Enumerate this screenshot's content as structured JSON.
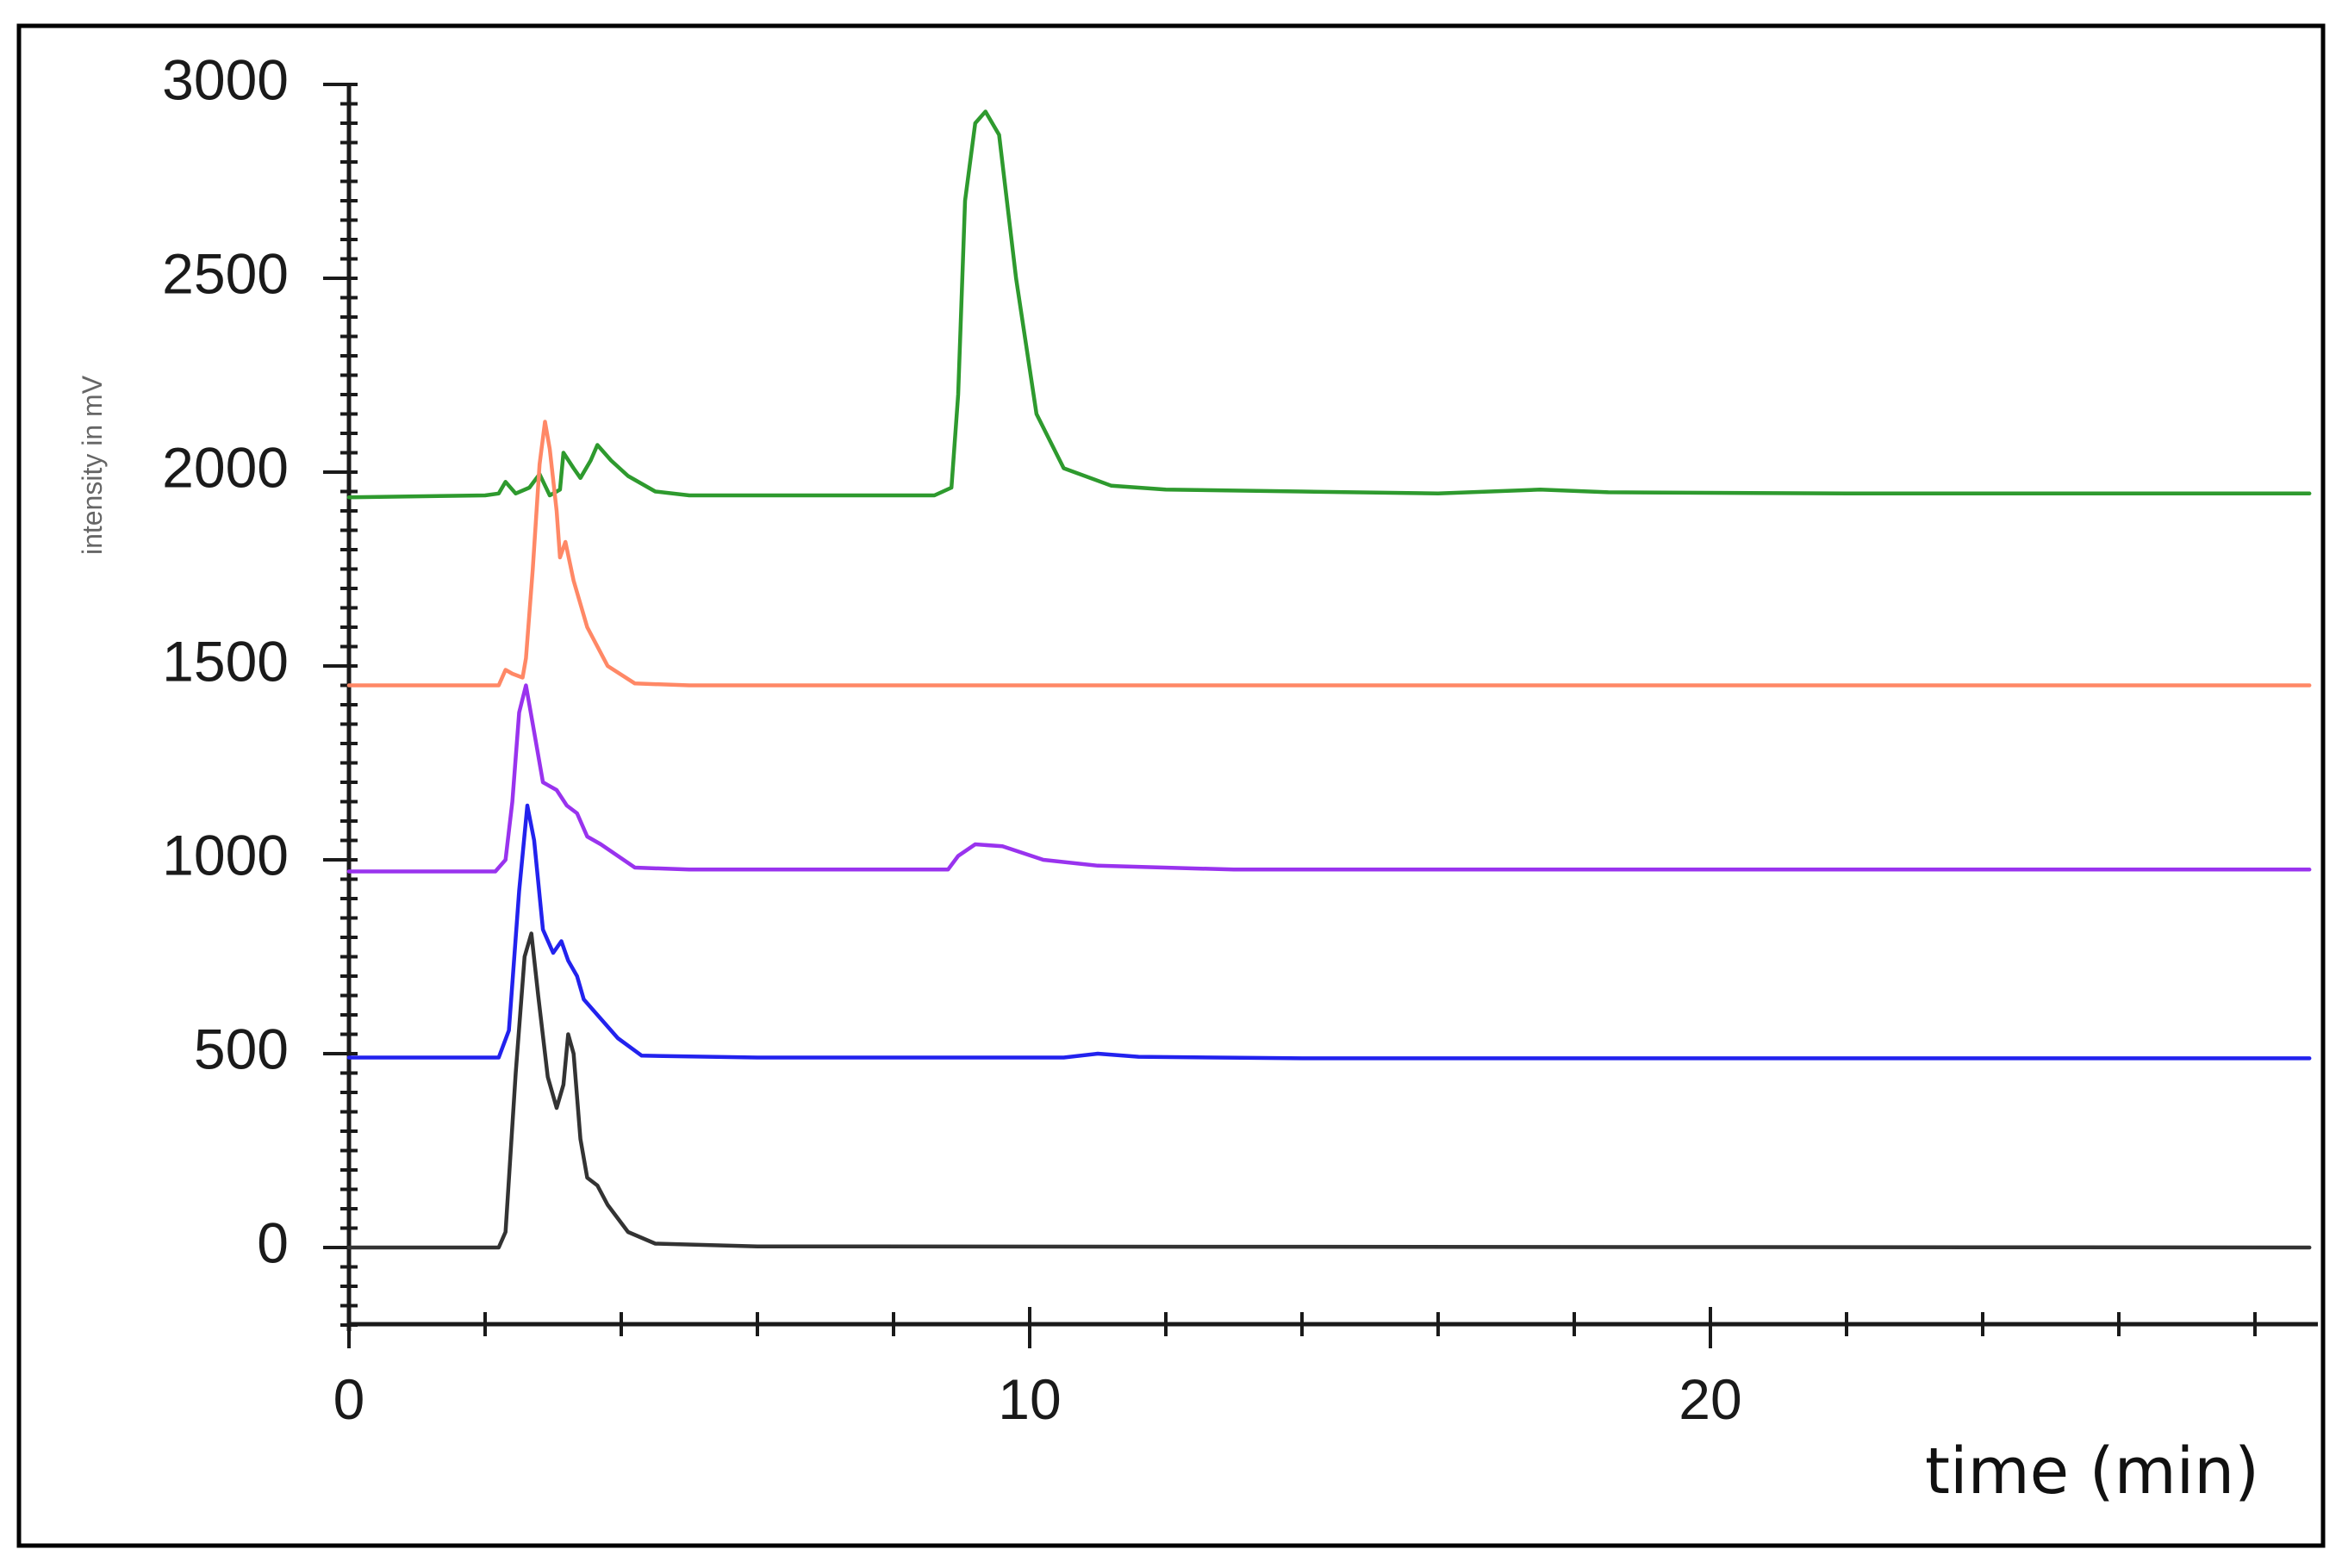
{
  "chart_data": {
    "type": "line",
    "xlabel": "time (min)",
    "ylabel": "intensity in mV",
    "xlim": [
      0,
      28.8
    ],
    "ylim": [
      -200,
      3000
    ],
    "x_ticks": [
      0,
      10,
      20
    ],
    "y_ticks": [
      0,
      500,
      1000,
      1500,
      2000,
      2500,
      3000
    ],
    "grid": false,
    "legend": "none",
    "series": [
      {
        "color": "#2e9a2e",
        "points": [
          [
            0,
            1935
          ],
          [
            2.0,
            1940
          ],
          [
            2.2,
            1945
          ],
          [
            2.3,
            1975
          ],
          [
            2.45,
            1945
          ],
          [
            2.65,
            1960
          ],
          [
            2.8,
            1995
          ],
          [
            2.95,
            1940
          ],
          [
            3.1,
            1955
          ],
          [
            3.15,
            2050
          ],
          [
            3.3,
            2010
          ],
          [
            3.4,
            1985
          ],
          [
            3.55,
            2030
          ],
          [
            3.65,
            2070
          ],
          [
            3.85,
            2030
          ],
          [
            4.1,
            1990
          ],
          [
            4.5,
            1950
          ],
          [
            5,
            1940
          ],
          [
            7,
            1940
          ],
          [
            8.6,
            1940
          ],
          [
            8.85,
            1960
          ],
          [
            8.95,
            2200
          ],
          [
            9.05,
            2700
          ],
          [
            9.2,
            2900
          ],
          [
            9.35,
            2930
          ],
          [
            9.55,
            2870
          ],
          [
            9.8,
            2500
          ],
          [
            10.1,
            2150
          ],
          [
            10.5,
            2010
          ],
          [
            11.2,
            1965
          ],
          [
            12,
            1955
          ],
          [
            14,
            1950
          ],
          [
            16,
            1945
          ],
          [
            17.5,
            1955
          ],
          [
            18.5,
            1948
          ],
          [
            22,
            1945
          ],
          [
            28.8,
            1945
          ]
        ]
      },
      {
        "color": "#ff8866",
        "points": [
          [
            0,
            1450
          ],
          [
            2.2,
            1450
          ],
          [
            2.3,
            1490
          ],
          [
            2.4,
            1480
          ],
          [
            2.55,
            1470
          ],
          [
            2.6,
            1520
          ],
          [
            2.7,
            1750
          ],
          [
            2.8,
            2020
          ],
          [
            2.88,
            2130
          ],
          [
            2.95,
            2060
          ],
          [
            3.05,
            1900
          ],
          [
            3.1,
            1780
          ],
          [
            3.18,
            1820
          ],
          [
            3.3,
            1720
          ],
          [
            3.5,
            1600
          ],
          [
            3.8,
            1500
          ],
          [
            4.2,
            1455
          ],
          [
            5,
            1450
          ],
          [
            28.8,
            1450
          ]
        ]
      },
      {
        "color": "#9933ee",
        "points": [
          [
            0,
            970
          ],
          [
            2.15,
            970
          ],
          [
            2.3,
            1000
          ],
          [
            2.4,
            1150
          ],
          [
            2.5,
            1380
          ],
          [
            2.6,
            1450
          ],
          [
            2.72,
            1330
          ],
          [
            2.85,
            1200
          ],
          [
            3.05,
            1180
          ],
          [
            3.2,
            1140
          ],
          [
            3.35,
            1120
          ],
          [
            3.5,
            1060
          ],
          [
            3.7,
            1040
          ],
          [
            4.2,
            980
          ],
          [
            5,
            975
          ],
          [
            8.8,
            975
          ],
          [
            8.95,
            1010
          ],
          [
            9.2,
            1040
          ],
          [
            9.6,
            1035
          ],
          [
            10.2,
            1000
          ],
          [
            11,
            985
          ],
          [
            13,
            975
          ],
          [
            28.8,
            975
          ]
        ]
      },
      {
        "color": "#2222ee",
        "points": [
          [
            0,
            490
          ],
          [
            2.2,
            490
          ],
          [
            2.35,
            560
          ],
          [
            2.5,
            920
          ],
          [
            2.62,
            1140
          ],
          [
            2.72,
            1050
          ],
          [
            2.85,
            820
          ],
          [
            3.0,
            760
          ],
          [
            3.12,
            790
          ],
          [
            3.22,
            740
          ],
          [
            3.35,
            700
          ],
          [
            3.45,
            640
          ],
          [
            3.65,
            600
          ],
          [
            3.95,
            540
          ],
          [
            4.3,
            495
          ],
          [
            6,
            490
          ],
          [
            10.5,
            490
          ],
          [
            11,
            500
          ],
          [
            11.6,
            492
          ],
          [
            14,
            488
          ],
          [
            28.8,
            488
          ]
        ]
      },
      {
        "color": "#333333",
        "points": [
          [
            0,
            0
          ],
          [
            2.2,
            0
          ],
          [
            2.3,
            40
          ],
          [
            2.45,
            450
          ],
          [
            2.58,
            750
          ],
          [
            2.68,
            810
          ],
          [
            2.78,
            650
          ],
          [
            2.92,
            440
          ],
          [
            3.05,
            360
          ],
          [
            3.15,
            420
          ],
          [
            3.22,
            550
          ],
          [
            3.3,
            500
          ],
          [
            3.4,
            280
          ],
          [
            3.5,
            180
          ],
          [
            3.65,
            160
          ],
          [
            3.8,
            110
          ],
          [
            4.1,
            40
          ],
          [
            4.5,
            10
          ],
          [
            6,
            3
          ],
          [
            28.8,
            0
          ]
        ]
      }
    ]
  }
}
